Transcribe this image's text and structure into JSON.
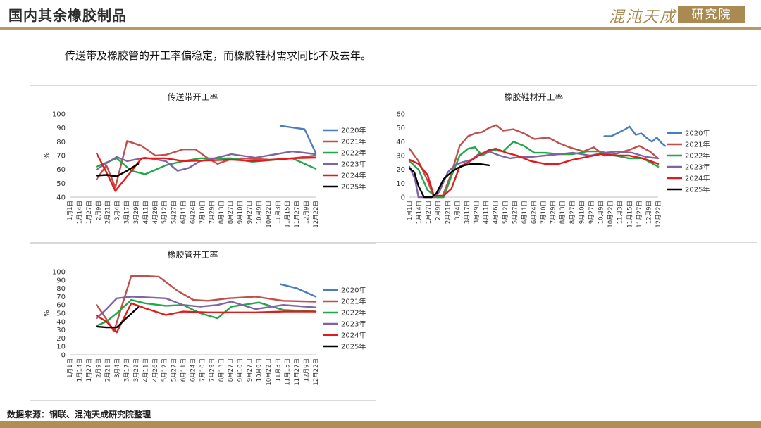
{
  "header": {
    "title": "国内其余橡胶制品",
    "logo_text": "混沌天成",
    "logo_box_text": "研究院"
  },
  "subtitle": "传送带及橡胶管的开工率偏稳定，而橡胶鞋材需求同比不及去年。",
  "footer": {
    "source": "数据来源：钢联、混沌天成研究院整理"
  },
  "colors": {
    "2020年": "#4a7ebb",
    "2021年": "#c0504d",
    "2022年": "#1ea84a",
    "2023年": "#8064a2",
    "2024年": "#e31a1c",
    "2025年": "#000000",
    "accent": "#b08e55"
  },
  "chart_data": [
    {
      "type": "line",
      "title": "传送带开工率",
      "ylabel": "%",
      "ylim": [
        40,
        100
      ],
      "yticks": [
        40,
        50,
        60,
        70,
        80,
        90,
        100
      ],
      "x_ticks": [
        "1月1日",
        "1月14日",
        "1月27日",
        "2月9日",
        "2月21日",
        "3月4日",
        "3月17日",
        "3月29日",
        "4月11日",
        "4月26日",
        "5月12日",
        "5月27日",
        "6月11日",
        "6月24日",
        "7月10日",
        "7月29日",
        "8月13日",
        "8月27日",
        "9月10日",
        "9月27日",
        "10月9日",
        "10月22日",
        "11月3日",
        "11月15日",
        "11月27日",
        "12月9日",
        "12月22日"
      ],
      "x_range": [
        1,
        357
      ],
      "series": [
        {
          "name": "2020年",
          "points": [
            [
              306,
              91.5
            ],
            [
              341,
              89
            ],
            [
              357,
              72
            ]
          ]
        },
        {
          "name": "2021年",
          "points": [
            [
              40,
              53
            ],
            [
              54,
              63
            ],
            [
              67,
              47
            ],
            [
              84,
              80.5
            ],
            [
              105,
              77
            ],
            [
              125,
              70
            ],
            [
              140,
              70.5
            ],
            [
              165,
              74.5
            ],
            [
              183,
              74.5
            ],
            [
              201,
              68
            ],
            [
              215,
              64
            ],
            [
              235,
              67.5
            ],
            [
              250,
              68
            ],
            [
              290,
              67
            ],
            [
              323,
              68
            ],
            [
              357,
              70
            ]
          ]
        },
        {
          "name": "2022年",
          "points": [
            [
              40,
              62
            ],
            [
              69,
              68
            ],
            [
              90,
              59
            ],
            [
              110,
              56.5
            ],
            [
              140,
              63
            ],
            [
              165,
              66
            ],
            [
              190,
              68
            ],
            [
              235,
              68
            ],
            [
              265,
              65.5
            ],
            [
              323,
              68
            ],
            [
              357,
              60.5
            ]
          ]
        },
        {
          "name": "2023年",
          "points": [
            [
              40,
              60
            ],
            [
              54,
              64.5
            ],
            [
              69,
              69
            ],
            [
              84,
              66
            ],
            [
              110,
              68.5
            ],
            [
              140,
              66
            ],
            [
              157,
              59
            ],
            [
              173,
              61
            ],
            [
              190,
              66
            ],
            [
              210,
              68
            ],
            [
              235,
              71
            ],
            [
              270,
              68.5
            ],
            [
              323,
              73
            ],
            [
              357,
              71
            ]
          ]
        },
        {
          "name": "2024年",
          "points": [
            [
              40,
              71.5
            ],
            [
              54,
              58
            ],
            [
              67,
              44.5
            ],
            [
              84,
              55
            ],
            [
              105,
              68
            ],
            [
              140,
              68
            ],
            [
              165,
              66
            ],
            [
              201,
              66.5
            ],
            [
              235,
              67
            ],
            [
              270,
              66
            ],
            [
              323,
              68
            ],
            [
              357,
              68.5
            ]
          ]
        },
        {
          "name": "2025年",
          "points": [
            [
              40,
              55.5
            ],
            [
              54,
              56
            ],
            [
              69,
              55
            ],
            [
              84,
              59
            ],
            [
              100,
              64
            ]
          ]
        }
      ]
    },
    {
      "type": "line",
      "title": "橡胶鞋材开工率",
      "ylabel": "",
      "ylim": [
        0,
        60
      ],
      "yticks": [
        0,
        10,
        20,
        30,
        40,
        50,
        60
      ],
      "x_ticks": [
        "1月1日",
        "1月14日",
        "1月27日",
        "2月9日",
        "2月21日",
        "3月4日",
        "3月17日",
        "3月29日",
        "4月11日",
        "4月26日",
        "5月12日",
        "5月27日",
        "6月11日",
        "6月24日",
        "7月10日",
        "7月29日",
        "8月13日",
        "8月27日",
        "9月10日",
        "9月27日",
        "10月9日",
        "10月22日",
        "11月3日",
        "11月15日",
        "11月27日",
        "12月9日",
        "12月22日"
      ],
      "x_range": [
        1,
        357
      ],
      "series": [
        {
          "name": "2020年",
          "points": [
            [
              280,
              44
            ],
            [
              290,
              44
            ],
            [
              310,
              49
            ],
            [
              316,
              51
            ],
            [
              325,
              45
            ],
            [
              333,
              46
            ],
            [
              340,
              43
            ],
            [
              348,
              40
            ],
            [
              355,
              43
            ],
            [
              362,
              39
            ],
            [
              367,
              37
            ]
          ]
        },
        {
          "name": "2021年",
          "points": [
            [
              1,
              35
            ],
            [
              14,
              26
            ],
            [
              27,
              12
            ],
            [
              36,
              0
            ],
            [
              48,
              0
            ],
            [
              61,
              17
            ],
            [
              73,
              37
            ],
            [
              85,
              44
            ],
            [
              95,
              46
            ],
            [
              105,
              47
            ],
            [
              115,
              50
            ],
            [
              125,
              52
            ],
            [
              135,
              48
            ],
            [
              150,
              49
            ],
            [
              165,
              46
            ],
            [
              180,
              42
            ],
            [
              200,
              43
            ],
            [
              215,
              39
            ],
            [
              230,
              36
            ],
            [
              250,
              33
            ],
            [
              265,
              36
            ],
            [
              280,
              30
            ],
            [
              295,
              31
            ],
            [
              315,
              34
            ],
            [
              330,
              37
            ],
            [
              345,
              33
            ],
            [
              357,
              28
            ]
          ]
        },
        {
          "name": "2022年",
          "points": [
            [
              1,
              26
            ],
            [
              14,
              20
            ],
            [
              27,
              5
            ],
            [
              40,
              0
            ],
            [
              50,
              0
            ],
            [
              61,
              15
            ],
            [
              73,
              30
            ],
            [
              85,
              35
            ],
            [
              95,
              36
            ],
            [
              105,
              30
            ],
            [
              120,
              34
            ],
            [
              135,
              33
            ],
            [
              150,
              40
            ],
            [
              165,
              37
            ],
            [
              180,
              32
            ],
            [
              195,
              32
            ],
            [
              215,
              31
            ],
            [
              235,
              31
            ],
            [
              255,
              33
            ],
            [
              275,
              33
            ],
            [
              295,
              30
            ],
            [
              315,
              28
            ],
            [
              335,
              28
            ],
            [
              357,
              22
            ]
          ]
        },
        {
          "name": "2023年",
          "points": [
            [
              1,
              22
            ],
            [
              9,
              13
            ],
            [
              14,
              0
            ],
            [
              36,
              0
            ],
            [
              44,
              4
            ],
            [
              56,
              18
            ],
            [
              66,
              23
            ],
            [
              76,
              25
            ],
            [
              90,
              27
            ],
            [
              100,
              31
            ],
            [
              115,
              33
            ],
            [
              130,
              30
            ],
            [
              145,
              28
            ],
            [
              160,
              29
            ],
            [
              175,
              29
            ],
            [
              195,
              30
            ],
            [
              215,
              31
            ],
            [
              235,
              32
            ],
            [
              260,
              30
            ],
            [
              280,
              32
            ],
            [
              300,
              33
            ],
            [
              320,
              32
            ],
            [
              340,
              29
            ],
            [
              357,
              28
            ]
          ]
        },
        {
          "name": "2024年",
          "points": [
            [
              1,
              27
            ],
            [
              14,
              24
            ],
            [
              27,
              16
            ],
            [
              36,
              1
            ],
            [
              50,
              1
            ],
            [
              61,
              6
            ],
            [
              73,
              22
            ],
            [
              85,
              25
            ],
            [
              100,
              30
            ],
            [
              115,
              34
            ],
            [
              125,
              35
            ],
            [
              140,
              32
            ],
            [
              155,
              30
            ],
            [
              175,
              26
            ],
            [
              195,
              24
            ],
            [
              215,
              24
            ],
            [
              235,
              27
            ],
            [
              255,
              29
            ],
            [
              275,
              31
            ],
            [
              295,
              30
            ],
            [
              315,
              30
            ],
            [
              335,
              28
            ],
            [
              357,
              24
            ]
          ]
        },
        {
          "name": "2025年",
          "points": [
            [
              1,
              21
            ],
            [
              8,
              18
            ],
            [
              14,
              8
            ],
            [
              22,
              0
            ],
            [
              33,
              0
            ],
            [
              40,
              3
            ],
            [
              50,
              13
            ],
            [
              61,
              18
            ],
            [
              70,
              21
            ],
            [
              80,
              23
            ],
            [
              90,
              24
            ],
            [
              100,
              24
            ],
            [
              115,
              23
            ]
          ]
        }
      ]
    },
    {
      "type": "line",
      "title": "橡胶管开工率",
      "ylabel": "%",
      "ylim": [
        0,
        100
      ],
      "yticks": [
        0,
        10,
        20,
        30,
        40,
        50,
        60,
        70,
        80,
        90,
        100
      ],
      "x_ticks": [
        "1月1日",
        "1月14日",
        "1月27日",
        "2月9日",
        "2月21日",
        "3月4日",
        "3月17日",
        "3月29日",
        "4月11日",
        "4月26日",
        "5月12日",
        "5月27日",
        "6月11日",
        "6月24日",
        "7月10日",
        "7月29日",
        "8月13日",
        "8月27日",
        "9月10日",
        "9月27日",
        "10月9日",
        "10月22日",
        "11月3日",
        "11月15日",
        "11月27日",
        "12月9日",
        "12月22日"
      ],
      "x_range": [
        1,
        357
      ],
      "series": [
        {
          "name": "2020年",
          "points": [
            [
              306,
              85
            ],
            [
              330,
              80
            ],
            [
              357,
              70
            ]
          ]
        },
        {
          "name": "2021年",
          "points": [
            [
              40,
              60
            ],
            [
              54,
              43
            ],
            [
              65,
              28
            ],
            [
              90,
              95
            ],
            [
              110,
              95
            ],
            [
              130,
              94
            ],
            [
              157,
              77
            ],
            [
              180,
              66
            ],
            [
              201,
              65
            ],
            [
              230,
              68
            ],
            [
              270,
              70
            ],
            [
              310,
              65
            ],
            [
              357,
              64
            ]
          ]
        },
        {
          "name": "2022年",
          "points": [
            [
              40,
              35
            ],
            [
              54,
              40
            ],
            [
              69,
              50
            ],
            [
              90,
              66
            ],
            [
              110,
              62
            ],
            [
              140,
              59
            ],
            [
              165,
              60
            ],
            [
              190,
              50
            ],
            [
              215,
              44
            ],
            [
              235,
              58
            ],
            [
              275,
              63
            ],
            [
              310,
              54
            ],
            [
              357,
              52
            ]
          ]
        },
        {
          "name": "2023年",
          "points": [
            [
              40,
              44
            ],
            [
              54,
              55
            ],
            [
              69,
              68
            ],
            [
              90,
              70
            ],
            [
              115,
              69
            ],
            [
              140,
              68
            ],
            [
              165,
              60
            ],
            [
              190,
              58
            ],
            [
              215,
              60
            ],
            [
              235,
              64
            ],
            [
              270,
              55
            ],
            [
              310,
              60
            ],
            [
              357,
              57
            ]
          ]
        },
        {
          "name": "2024年",
          "points": [
            [
              40,
              47
            ],
            [
              54,
              40
            ],
            [
              69,
              27
            ],
            [
              90,
              62
            ],
            [
              110,
              56
            ],
            [
              140,
              48
            ],
            [
              165,
              52
            ],
            [
              201,
              51
            ],
            [
              235,
              51
            ],
            [
              270,
              51
            ],
            [
              310,
              52
            ],
            [
              357,
              52
            ]
          ]
        },
        {
          "name": "2025年",
          "points": [
            [
              40,
              34
            ],
            [
              54,
              33
            ],
            [
              69,
              33
            ],
            [
              84,
              45
            ],
            [
              100,
              57
            ]
          ]
        }
      ]
    }
  ]
}
